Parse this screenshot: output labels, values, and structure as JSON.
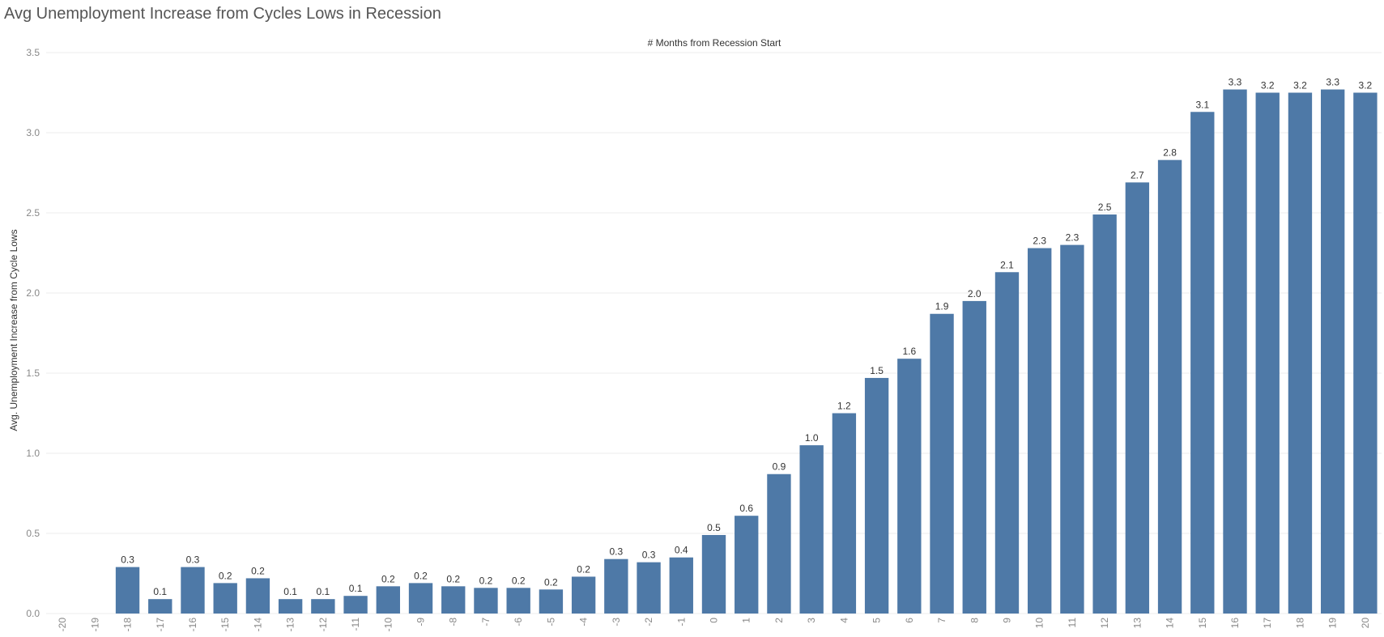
{
  "chart_data": {
    "type": "bar",
    "title": "Avg Unemployment Increase from Cycles Lows in Recession",
    "xlabel": "# Months from Recession Start",
    "ylabel": "Avg. Unemployment Increase from Cycle Lows",
    "ylim": [
      0,
      3.5
    ],
    "yticks": [
      "0.0",
      "0.5",
      "1.0",
      "1.5",
      "2.0",
      "2.5",
      "3.0",
      "3.5"
    ],
    "grid": "horizontal",
    "bar_color": "#4e79a7",
    "categories": [
      "-20",
      "-19",
      "-18",
      "-17",
      "-16",
      "-15",
      "-14",
      "-13",
      "-12",
      "-11",
      "-10",
      "-9",
      "-8",
      "-7",
      "-6",
      "-5",
      "-4",
      "-3",
      "-2",
      "-1",
      "0",
      "1",
      "2",
      "3",
      "4",
      "5",
      "6",
      "7",
      "8",
      "9",
      "10",
      "11",
      "12",
      "13",
      "14",
      "15",
      "16",
      "17",
      "18",
      "19",
      "20"
    ],
    "values": [
      null,
      null,
      0.29,
      0.09,
      0.29,
      0.19,
      0.22,
      0.09,
      0.09,
      0.11,
      0.17,
      0.19,
      0.17,
      0.16,
      0.16,
      0.15,
      0.23,
      0.34,
      0.32,
      0.35,
      0.49,
      0.61,
      0.87,
      1.05,
      1.25,
      1.47,
      1.59,
      1.87,
      1.95,
      2.13,
      2.28,
      2.3,
      2.49,
      2.69,
      2.83,
      3.13,
      3.27,
      3.25,
      3.25,
      3.27,
      3.25
    ],
    "labels": [
      "",
      "",
      "0.3",
      "0.1",
      "0.3",
      "0.2",
      "0.2",
      "0.1",
      "0.1",
      "0.1",
      "0.2",
      "0.2",
      "0.2",
      "0.2",
      "0.2",
      "0.2",
      "0.2",
      "0.3",
      "0.3",
      "0.4",
      "0.5",
      "0.6",
      "0.9",
      "1.0",
      "1.2",
      "1.5",
      "1.6",
      "1.9",
      "2.0",
      "2.1",
      "2.3",
      "2.3",
      "2.5",
      "2.7",
      "2.8",
      "3.1",
      "3.3",
      "3.2",
      "3.2",
      "3.3",
      "3.2"
    ]
  }
}
